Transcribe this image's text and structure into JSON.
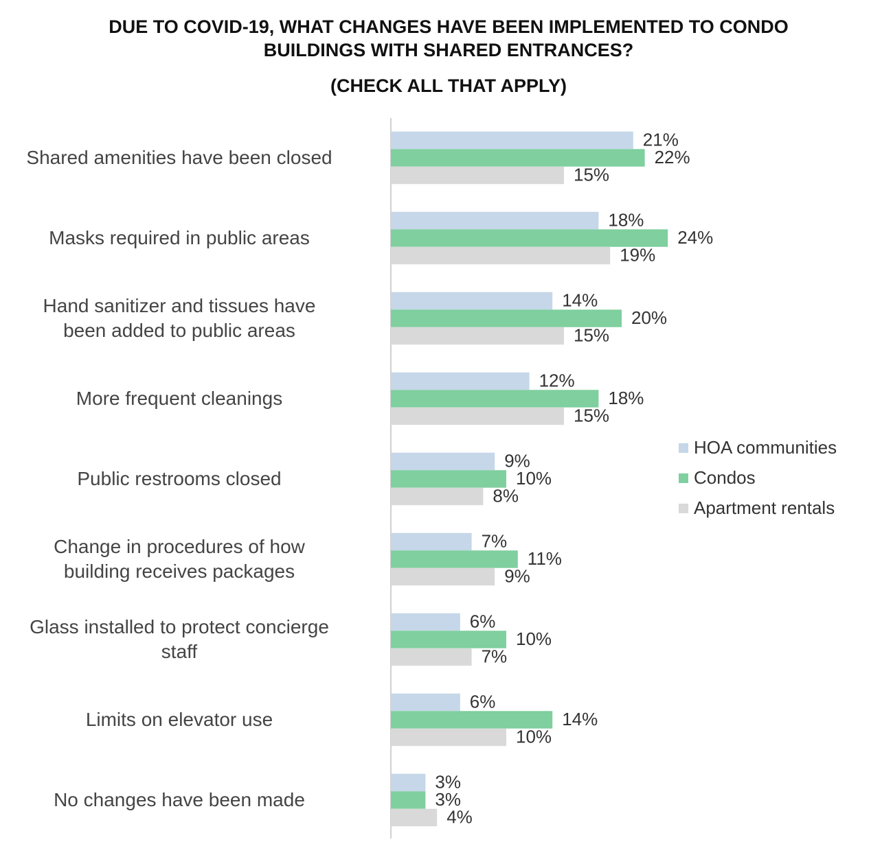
{
  "chart_data": {
    "type": "hbar",
    "title": "DUE TO COVID-19, WHAT CHANGES HAVE BEEN IMPLEMENTED TO CONDO BUILDINGS WITH SHARED ENTRANCES?",
    "subtitle": "(CHECK ALL THAT APPLY)",
    "categories": [
      "Shared amenities have been closed",
      "Masks required in public areas",
      "Hand sanitizer and tissues have\nbeen added to public areas",
      "More frequent cleanings",
      "Public restrooms closed",
      "Change in procedures of how\nbuilding receives packages",
      "Glass installed to protect concierge\nstaff",
      "Limits on elevator use",
      "No changes have been made"
    ],
    "series": [
      {
        "name": "HOA communities",
        "color": "#c5d7e8",
        "values": [
          21,
          18,
          14,
          12,
          9,
          7,
          6,
          6,
          3
        ],
        "value_labels": [
          "21%",
          "18%",
          "14%",
          "12%",
          "9%",
          "7%",
          "6%",
          "6%",
          "3%"
        ]
      },
      {
        "name": "Condos",
        "color": "#7fcf9f",
        "values": [
          22,
          24,
          20,
          18,
          10,
          11,
          10,
          14,
          3
        ],
        "value_labels": [
          "22%",
          "24%",
          "20%",
          "18%",
          "10%",
          "11%",
          "10%",
          "14%",
          "3%"
        ]
      },
      {
        "name": "Apartment rentals",
        "color": "#d9d9d9",
        "values": [
          15,
          19,
          15,
          15,
          8,
          9,
          7,
          10,
          4
        ],
        "value_labels": [
          "15%",
          "19%",
          "15%",
          "15%",
          "8%",
          "9%",
          "7%",
          "10%",
          "4%"
        ]
      }
    ],
    "xlim": [
      0,
      25
    ],
    "legend": "right"
  }
}
